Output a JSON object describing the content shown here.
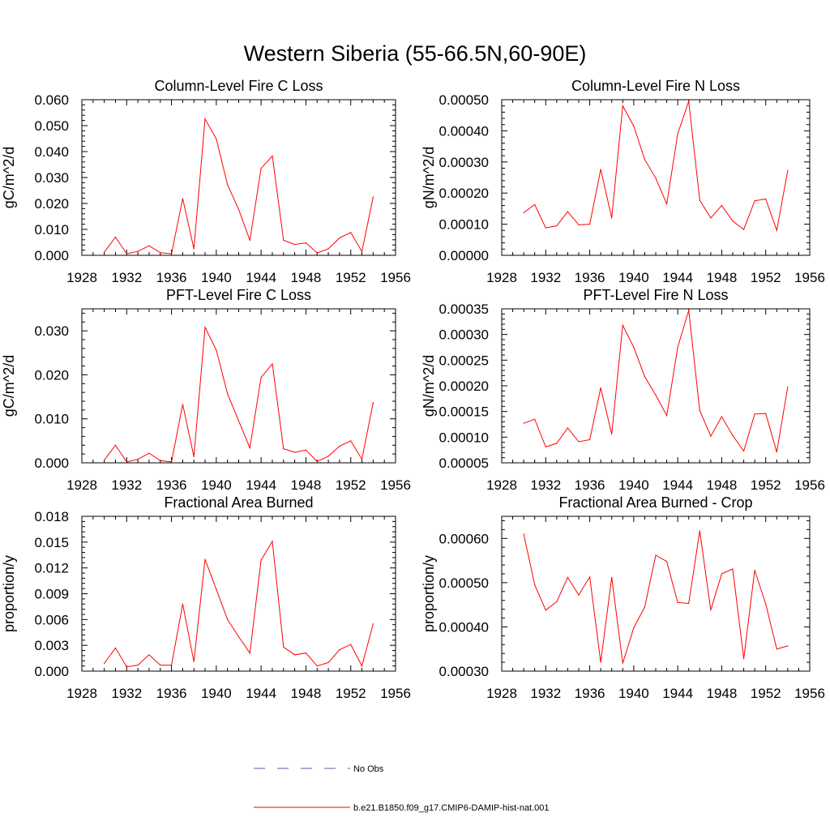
{
  "page_title": "Western Siberia (55-66.5N,60-90E)",
  "legend": [
    {
      "label": "No Obs",
      "color": "#5a5ab4",
      "style": "dashed"
    },
    {
      "label": "b.e21.B1850.f09_g17.CMIP6-DAMIP-hist-nat.001",
      "color": "#ff0000",
      "style": "solid"
    }
  ],
  "chart_data": [
    {
      "type": "line",
      "title": "Column-Level Fire C Loss",
      "ylabel": "gC/m^2/d",
      "xlim": [
        1928,
        1956
      ],
      "ylim": [
        0,
        0.06
      ],
      "xticks": [
        "1928",
        "1932",
        "1936",
        "1940",
        "1944",
        "1948",
        "1952",
        "1956"
      ],
      "yticks": [
        "0.000",
        "0.010",
        "0.020",
        "0.030",
        "0.040",
        "0.050",
        "0.060"
      ],
      "color": "#ff0000",
      "x": [
        1930,
        1931,
        1932,
        1933,
        1934,
        1935,
        1936,
        1937,
        1938,
        1939,
        1940,
        1941,
        1942,
        1943,
        1944,
        1945,
        1946,
        1947,
        1948,
        1949,
        1950,
        1951,
        1952,
        1953,
        1954
      ],
      "values": [
        0.0012,
        0.007,
        0.0006,
        0.0015,
        0.0037,
        0.001,
        0.0006,
        0.0219,
        0.0025,
        0.0526,
        0.0448,
        0.0272,
        0.0177,
        0.0058,
        0.0335,
        0.0383,
        0.0058,
        0.0042,
        0.0048,
        0.0009,
        0.0025,
        0.0067,
        0.0088,
        0.0015,
        0.0225
      ]
    },
    {
      "type": "line",
      "title": "Column-Level Fire N Loss",
      "ylabel": "gN/m^2/d",
      "xlim": [
        1928,
        1956
      ],
      "ylim": [
        0,
        0.0005
      ],
      "xticks": [
        "1928",
        "1932",
        "1936",
        "1940",
        "1944",
        "1948",
        "1952",
        "1956"
      ],
      "yticks": [
        "0.00000",
        "0.00010",
        "0.00020",
        "0.00030",
        "0.00040",
        "0.00050"
      ],
      "color": "#ff0000",
      "x": [
        1930,
        1931,
        1932,
        1933,
        1934,
        1935,
        1936,
        1937,
        1938,
        1939,
        1940,
        1941,
        1942,
        1943,
        1944,
        1945,
        1946,
        1947,
        1948,
        1949,
        1950,
        1951,
        1952,
        1953,
        1954
      ],
      "values": [
        0.000137,
        0.000163,
        8.8e-05,
        9.5e-05,
        0.00014,
        9.8e-05,
        0.0001,
        0.000276,
        0.00012,
        0.00048,
        0.000415,
        0.000308,
        0.000248,
        0.000165,
        0.00039,
        0.000495,
        0.000177,
        0.00012,
        0.00016,
        0.00011,
        8.3e-05,
        0.000175,
        0.000181,
        8e-05,
        0.000273
      ]
    },
    {
      "type": "line",
      "title": "PFT-Level Fire C Loss",
      "ylabel": "gC/m^2/d",
      "xlim": [
        1928,
        1956
      ],
      "ylim": [
        0,
        0.035
      ],
      "xticks": [
        "1928",
        "1932",
        "1936",
        "1940",
        "1944",
        "1948",
        "1952",
        "1956"
      ],
      "yticks": [
        "0.000",
        "0.010",
        "0.020",
        "0.030"
      ],
      "color": "#ff0000",
      "x": [
        1930,
        1931,
        1932,
        1933,
        1934,
        1935,
        1936,
        1937,
        1938,
        1939,
        1940,
        1941,
        1942,
        1943,
        1944,
        1945,
        1946,
        1947,
        1948,
        1949,
        1950,
        1951,
        1952,
        1953,
        1954
      ],
      "values": [
        0.0006,
        0.004,
        0.0002,
        0.0008,
        0.0022,
        0.0005,
        0.0002,
        0.0133,
        0.0014,
        0.0308,
        0.0256,
        0.0157,
        0.0095,
        0.0034,
        0.0194,
        0.0225,
        0.0032,
        0.0024,
        0.0029,
        0.0003,
        0.0015,
        0.0038,
        0.005,
        0.0008,
        0.0137
      ]
    },
    {
      "type": "line",
      "title": "PFT-Level Fire N Loss",
      "ylabel": "gN/m^2/d",
      "xlim": [
        1928,
        1956
      ],
      "ylim": [
        5e-05,
        0.00035
      ],
      "xticks": [
        "1928",
        "1932",
        "1936",
        "1940",
        "1944",
        "1948",
        "1952",
        "1956"
      ],
      "yticks": [
        "0.00005",
        "0.00010",
        "0.00015",
        "0.00020",
        "0.00025",
        "0.00030",
        "0.00035"
      ],
      "color": "#ff0000",
      "x": [
        1930,
        1931,
        1932,
        1933,
        1934,
        1935,
        1936,
        1937,
        1938,
        1939,
        1940,
        1941,
        1942,
        1943,
        1944,
        1945,
        1946,
        1947,
        1948,
        1949,
        1950,
        1951,
        1952,
        1953,
        1954
      ],
      "values": [
        0.000127,
        0.000135,
        8.1e-05,
        8.8e-05,
        0.000118,
        9.1e-05,
        9.5e-05,
        0.000196,
        0.000106,
        0.000318,
        0.000275,
        0.000218,
        0.000182,
        0.000142,
        0.000275,
        0.000347,
        0.000152,
        0.000102,
        0.00014,
        0.000103,
        7.3e-05,
        0.000145,
        0.000146,
        7.1e-05,
        0.000198
      ]
    },
    {
      "type": "line",
      "title": "Fractional Area Burned",
      "ylabel": "proportion/y",
      "xlim": [
        1928,
        1956
      ],
      "ylim": [
        0,
        0.018
      ],
      "xticks": [
        "1928",
        "1932",
        "1936",
        "1940",
        "1944",
        "1948",
        "1952",
        "1956"
      ],
      "yticks": [
        "0.000",
        "0.003",
        "0.006",
        "0.009",
        "0.012",
        "0.015",
        "0.018"
      ],
      "color": "#ff0000",
      "x": [
        1930,
        1931,
        1932,
        1933,
        1934,
        1935,
        1936,
        1937,
        1938,
        1939,
        1940,
        1941,
        1942,
        1943,
        1944,
        1945,
        1946,
        1947,
        1948,
        1949,
        1950,
        1951,
        1952,
        1953,
        1954
      ],
      "values": [
        0.0009,
        0.0027,
        0.0005,
        0.0007,
        0.0019,
        0.0007,
        0.0007,
        0.0078,
        0.0011,
        0.013,
        0.0095,
        0.006,
        0.004,
        0.0021,
        0.0129,
        0.0151,
        0.0028,
        0.0019,
        0.0021,
        0.0006,
        0.001,
        0.0025,
        0.0031,
        0.0006,
        0.0055
      ]
    },
    {
      "type": "line",
      "title": "Fractional Area Burned - Crop",
      "ylabel": "proportion/y",
      "xlim": [
        1928,
        1956
      ],
      "ylim": [
        0.0003,
        0.00065
      ],
      "xticks": [
        "1928",
        "1932",
        "1936",
        "1940",
        "1944",
        "1948",
        "1952",
        "1956"
      ],
      "yticks": [
        "0.00030",
        "0.00040",
        "0.00050",
        "0.00060"
      ],
      "color": "#ff0000",
      "x": [
        1930,
        1931,
        1932,
        1933,
        1934,
        1935,
        1936,
        1937,
        1938,
        1939,
        1940,
        1941,
        1942,
        1943,
        1944,
        1945,
        1946,
        1947,
        1948,
        1949,
        1950,
        1951,
        1952,
        1953,
        1954
      ],
      "values": [
        0.00061,
        0.000495,
        0.000438,
        0.000457,
        0.000512,
        0.000472,
        0.000513,
        0.00032,
        0.000512,
        0.000318,
        0.000398,
        0.000445,
        0.000562,
        0.000548,
        0.000455,
        0.000453,
        0.000617,
        0.000438,
        0.00052,
        0.000531,
        0.000328,
        0.000528,
        0.000452,
        0.00035,
        0.000357
      ]
    }
  ]
}
